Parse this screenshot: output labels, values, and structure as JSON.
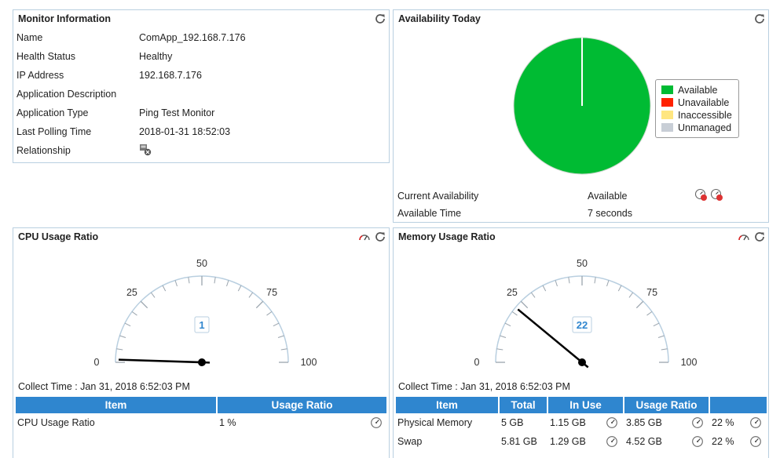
{
  "colors": {
    "panel_border": "#b9cfe0",
    "header_blue": "#2f86cf",
    "available": "#00bb33",
    "unavailable": "#ff2200",
    "inaccessible": "#ffe680",
    "unmanaged": "#c8ced6"
  },
  "monitor_info": {
    "title": "Monitor Information",
    "rows": [
      {
        "label": "Name",
        "value": "ComApp_192.168.7.176"
      },
      {
        "label": "Health Status",
        "value": "Healthy"
      },
      {
        "label": "IP Address",
        "value": "192.168.7.176"
      },
      {
        "label": "Application Description",
        "value": ""
      },
      {
        "label": "Application Type",
        "value": "Ping Test Monitor"
      },
      {
        "label": "Last Polling Time",
        "value": "2018-01-31 18:52:03"
      },
      {
        "label": "Relationship",
        "value": "",
        "icon": "relationship-icon"
      }
    ]
  },
  "availability": {
    "title": "Availability Today",
    "pie_available_fraction": 1.0,
    "legend": [
      "Available",
      "Unavailable",
      "Inaccessible",
      "Unmanaged"
    ],
    "current_label": "Current Availability",
    "current_value": "Available",
    "time_label": "Available Time",
    "time_value": "7 seconds",
    "report_icons": [
      "report-7-icon",
      "report-30-icon"
    ]
  },
  "cpu": {
    "title": "CPU Usage Ratio",
    "ticks": [
      "0",
      "25",
      "50",
      "75",
      "100"
    ],
    "value": 1,
    "value_label": "1",
    "collect_time": "Collect Time : Jan 31, 2018 6:52:03 PM",
    "table": {
      "headers": [
        "Item",
        "Usage Ratio"
      ],
      "rows": [
        {
          "item": "CPU Usage Ratio",
          "ratio": "1 %"
        }
      ]
    }
  },
  "memory": {
    "title": "Memory Usage Ratio",
    "ticks": [
      "0",
      "25",
      "50",
      "75",
      "100"
    ],
    "value": 22,
    "value_label": "22",
    "collect_time": "Collect Time : Jan 31, 2018 6:52:03 PM",
    "table": {
      "headers": [
        "Item",
        "Total",
        "In Use",
        "Usage Ratio",
        ""
      ],
      "rows": [
        {
          "item": "Physical Memory",
          "total": "5 GB",
          "inuse": "1.15 GB",
          "free": "3.85 GB",
          "ratio": "22 %"
        },
        {
          "item": "Swap",
          "total": "5.81 GB",
          "inuse": "1.29 GB",
          "free": "4.52 GB",
          "ratio": "22 %"
        }
      ]
    }
  }
}
